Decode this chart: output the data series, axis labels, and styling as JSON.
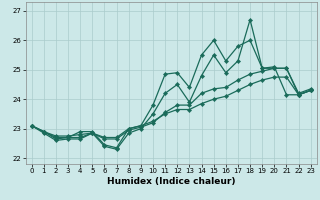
{
  "xlabel": "Humidex (Indice chaleur)",
  "background_color": "#cce8e8",
  "grid_color": "#aacccc",
  "line_color": "#1a6b5a",
  "xlim": [
    -0.5,
    23.5
  ],
  "ylim": [
    21.8,
    27.3
  ],
  "yticks": [
    22,
    23,
    24,
    25,
    26,
    27
  ],
  "xticks": [
    0,
    1,
    2,
    3,
    4,
    5,
    6,
    7,
    8,
    9,
    10,
    11,
    12,
    13,
    14,
    15,
    16,
    17,
    18,
    19,
    20,
    21,
    22,
    23
  ],
  "series": [
    [
      23.1,
      22.85,
      22.6,
      22.65,
      22.65,
      22.85,
      22.4,
      22.3,
      22.85,
      23.0,
      23.5,
      24.2,
      24.5,
      23.9,
      24.8,
      25.5,
      24.9,
      25.3,
      26.7,
      25.05,
      25.1,
      24.15,
      24.15,
      24.3
    ],
    [
      23.1,
      22.9,
      22.65,
      22.7,
      22.9,
      22.9,
      22.45,
      22.35,
      23.0,
      23.1,
      23.8,
      24.85,
      24.9,
      24.4,
      25.5,
      26.0,
      25.3,
      25.8,
      26.0,
      25.05,
      25.05,
      25.05,
      24.15,
      24.3
    ],
    [
      23.1,
      22.9,
      22.7,
      22.7,
      22.7,
      22.85,
      22.65,
      22.65,
      22.95,
      23.05,
      23.2,
      23.55,
      23.8,
      23.8,
      24.2,
      24.35,
      24.4,
      24.65,
      24.85,
      24.95,
      25.05,
      25.05,
      24.2,
      24.35
    ],
    [
      23.1,
      22.9,
      22.75,
      22.75,
      22.8,
      22.85,
      22.7,
      22.7,
      23.0,
      23.1,
      23.25,
      23.5,
      23.65,
      23.65,
      23.85,
      24.0,
      24.1,
      24.3,
      24.5,
      24.65,
      24.75,
      24.75,
      24.15,
      24.3
    ]
  ],
  "xlabel_fontsize": 6.5,
  "tick_labelsize": 5,
  "linewidth": 0.9,
  "markersize": 2.2
}
